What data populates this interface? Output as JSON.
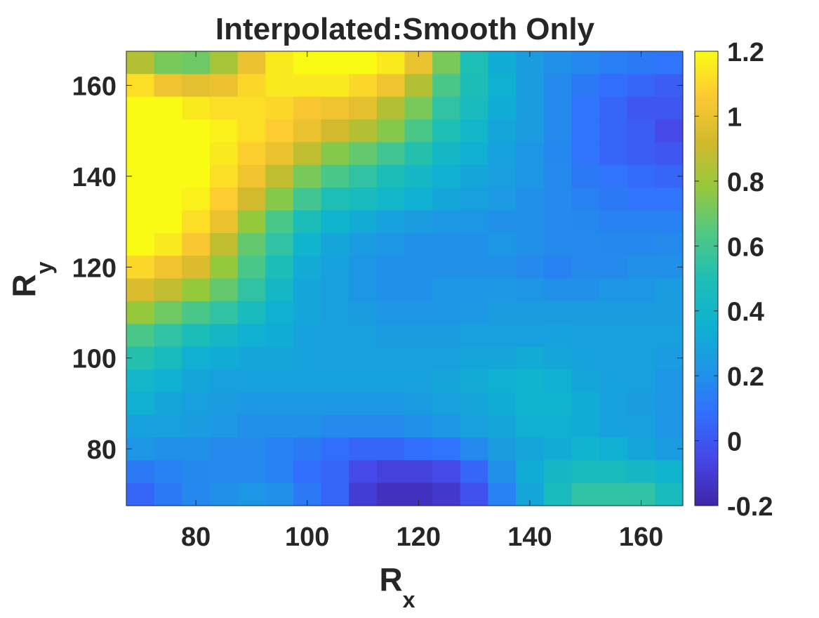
{
  "chart_data": {
    "type": "heatmap",
    "title": "Interpolated:Smooth Only",
    "xlabel": {
      "main": "R",
      "sub": "x"
    },
    "ylabel": {
      "main": "R",
      "sub": "y"
    },
    "x_range": [
      67.5,
      167.5
    ],
    "y_range": [
      67.5,
      167.5
    ],
    "x_ticks": [
      80,
      100,
      120,
      140,
      160
    ],
    "y_ticks": [
      80,
      100,
      120,
      140,
      160
    ],
    "x_centers": [
      70,
      75,
      80,
      85,
      90,
      95,
      100,
      105,
      110,
      115,
      120,
      125,
      130,
      135,
      140,
      145,
      150,
      155,
      160,
      165
    ],
    "y_centers": [
      165,
      160,
      155,
      150,
      145,
      140,
      135,
      130,
      125,
      120,
      115,
      110,
      105,
      100,
      95,
      90,
      85,
      80,
      75,
      70
    ],
    "colorbar": {
      "range": [
        -0.2,
        1.2
      ],
      "ticks": [
        -0.2,
        0,
        0.2,
        0.4,
        0.6,
        0.8,
        1,
        1.2
      ],
      "tick_labels": [
        "-0.2",
        "0",
        "0.2",
        "0.4",
        "0.6",
        "0.8",
        "1",
        "1.2"
      ],
      "colormap": "parula"
    },
    "values": [
      [
        0.85,
        0.72,
        0.7,
        0.82,
        1.0,
        1.15,
        1.2,
        1.2,
        1.2,
        1.15,
        1.0,
        0.72,
        0.5,
        0.33,
        0.25,
        0.2,
        0.17,
        0.14,
        0.12,
        0.1
      ],
      [
        1.12,
        1.02,
        0.98,
        1.0,
        1.1,
        1.15,
        1.15,
        1.15,
        1.1,
        1.02,
        0.85,
        0.62,
        0.48,
        0.35,
        0.25,
        0.18,
        0.12,
        0.08,
        0.05,
        0.02
      ],
      [
        1.2,
        1.2,
        1.15,
        1.12,
        1.12,
        1.1,
        1.05,
        1.02,
        0.98,
        0.85,
        0.72,
        0.55,
        0.45,
        0.33,
        0.25,
        0.18,
        0.1,
        0.05,
        0.0,
        0.0
      ],
      [
        1.2,
        1.2,
        1.2,
        1.17,
        1.12,
        1.07,
        1.0,
        0.92,
        0.85,
        0.75,
        0.62,
        0.5,
        0.4,
        0.3,
        0.25,
        0.18,
        0.1,
        0.05,
        0.02,
        -0.05
      ],
      [
        1.2,
        1.2,
        1.2,
        1.15,
        1.08,
        1.0,
        0.88,
        0.75,
        0.68,
        0.6,
        0.52,
        0.42,
        0.35,
        0.28,
        0.22,
        0.17,
        0.1,
        0.05,
        0.02,
        0.0
      ],
      [
        1.2,
        1.2,
        1.2,
        1.12,
        1.02,
        0.88,
        0.72,
        0.62,
        0.55,
        0.48,
        0.42,
        0.35,
        0.3,
        0.26,
        0.22,
        0.18,
        0.12,
        0.1,
        0.07,
        0.05
      ],
      [
        1.2,
        1.2,
        1.17,
        1.07,
        0.92,
        0.75,
        0.6,
        0.5,
        0.45,
        0.4,
        0.35,
        0.3,
        0.27,
        0.24,
        0.2,
        0.18,
        0.15,
        0.12,
        0.1,
        0.1
      ],
      [
        1.2,
        1.2,
        1.12,
        1.0,
        0.78,
        0.62,
        0.48,
        0.38,
        0.32,
        0.28,
        0.25,
        0.23,
        0.22,
        0.2,
        0.2,
        0.18,
        0.17,
        0.15,
        0.15,
        0.15
      ],
      [
        1.2,
        1.15,
        1.05,
        0.88,
        0.68,
        0.55,
        0.38,
        0.3,
        0.25,
        0.22,
        0.2,
        0.2,
        0.2,
        0.22,
        0.2,
        0.18,
        0.18,
        0.17,
        0.17,
        0.18
      ],
      [
        1.1,
        1.02,
        0.95,
        0.78,
        0.62,
        0.48,
        0.32,
        0.28,
        0.22,
        0.2,
        0.2,
        0.2,
        0.2,
        0.2,
        0.18,
        0.15,
        0.18,
        0.18,
        0.2,
        0.2
      ],
      [
        0.95,
        0.88,
        0.78,
        0.68,
        0.55,
        0.42,
        0.3,
        0.27,
        0.22,
        0.2,
        0.2,
        0.22,
        0.22,
        0.23,
        0.22,
        0.2,
        0.2,
        0.22,
        0.22,
        0.25
      ],
      [
        0.78,
        0.7,
        0.62,
        0.55,
        0.45,
        0.35,
        0.3,
        0.27,
        0.25,
        0.22,
        0.22,
        0.22,
        0.23,
        0.25,
        0.25,
        0.25,
        0.25,
        0.25,
        0.25,
        0.25
      ],
      [
        0.62,
        0.55,
        0.48,
        0.42,
        0.35,
        0.33,
        0.28,
        0.27,
        0.27,
        0.25,
        0.25,
        0.25,
        0.27,
        0.27,
        0.27,
        0.28,
        0.27,
        0.27,
        0.27,
        0.27
      ],
      [
        0.52,
        0.45,
        0.35,
        0.33,
        0.3,
        0.3,
        0.28,
        0.27,
        0.27,
        0.27,
        0.27,
        0.27,
        0.3,
        0.3,
        0.32,
        0.3,
        0.28,
        0.27,
        0.27,
        0.25
      ],
      [
        0.4,
        0.35,
        0.3,
        0.27,
        0.28,
        0.28,
        0.28,
        0.28,
        0.28,
        0.28,
        0.28,
        0.3,
        0.32,
        0.35,
        0.38,
        0.35,
        0.3,
        0.28,
        0.27,
        0.22
      ],
      [
        0.35,
        0.3,
        0.27,
        0.25,
        0.23,
        0.23,
        0.23,
        0.23,
        0.23,
        0.23,
        0.25,
        0.27,
        0.3,
        0.33,
        0.38,
        0.38,
        0.33,
        0.28,
        0.25,
        0.22
      ],
      [
        0.28,
        0.27,
        0.25,
        0.23,
        0.2,
        0.2,
        0.2,
        0.18,
        0.18,
        0.18,
        0.2,
        0.22,
        0.27,
        0.3,
        0.35,
        0.35,
        0.33,
        0.28,
        0.27,
        0.22
      ],
      [
        0.22,
        0.2,
        0.2,
        0.18,
        0.18,
        0.15,
        0.12,
        0.08,
        0.05,
        0.05,
        0.08,
        0.1,
        0.18,
        0.25,
        0.3,
        0.32,
        0.38,
        0.35,
        0.3,
        0.25
      ],
      [
        0.12,
        0.15,
        0.17,
        0.18,
        0.18,
        0.15,
        0.08,
        0.05,
        -0.05,
        -0.08,
        -0.08,
        -0.05,
        0.05,
        0.2,
        0.33,
        0.42,
        0.45,
        0.45,
        0.42,
        0.38
      ],
      [
        0.05,
        0.12,
        0.17,
        0.2,
        0.22,
        0.2,
        0.12,
        0.05,
        -0.1,
        -0.15,
        -0.15,
        -0.12,
        -0.02,
        0.15,
        0.3,
        0.45,
        0.55,
        0.55,
        0.55,
        0.45
      ]
    ]
  }
}
